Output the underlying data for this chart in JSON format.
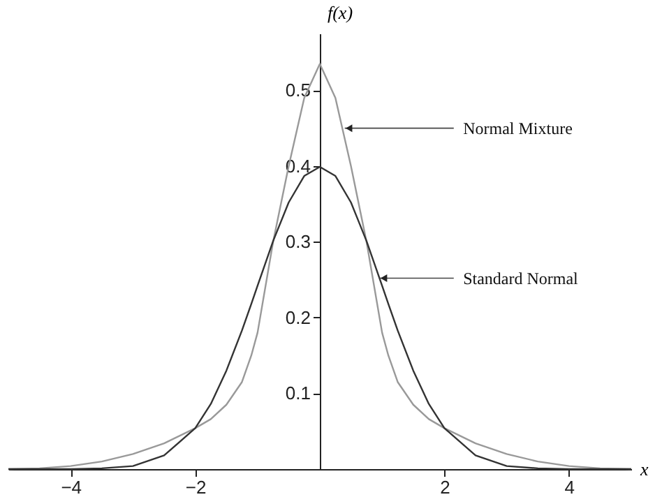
{
  "chart_data": {
    "type": "line",
    "xlabel": "x",
    "ylabel": "f(x)",
    "x": [
      -5,
      -4.5,
      -4,
      -3.5,
      -3,
      -2.5,
      -2,
      -1.75,
      -1.5,
      -1.25,
      -1.1,
      -1,
      -0.75,
      -0.5,
      -0.25,
      0,
      0.25,
      0.5,
      0.75,
      1,
      1.1,
      1.25,
      1.5,
      1.75,
      2,
      2.5,
      3,
      3.5,
      4,
      4.5,
      5
    ],
    "series": [
      {
        "color": "#999999",
        "values": [
          0,
          0.001,
          0.004,
          0.01,
          0.02,
          0.034,
          0.054,
          0.066,
          0.085,
          0.115,
          0.15,
          0.18,
          0.3,
          0.4,
          0.49,
          0.535,
          0.49,
          0.4,
          0.3,
          0.18,
          0.15,
          0.115,
          0.085,
          0.066,
          0.054,
          0.034,
          0.02,
          0.01,
          0.004,
          0.001,
          0
        ]
      },
      {
        "color": "#333333",
        "values": [
          0,
          0,
          0,
          0.001,
          0.004,
          0.018,
          0.054,
          0.086,
          0.13,
          0.183,
          0.218,
          0.242,
          0.301,
          0.352,
          0.387,
          0.399,
          0.387,
          0.352,
          0.301,
          0.242,
          0.218,
          0.183,
          0.13,
          0.086,
          0.054,
          0.018,
          0.004,
          0.001,
          0,
          0,
          0
        ]
      }
    ],
    "annotations": [
      {
        "text": "Normal Mixture",
        "x": 0.4,
        "y": 0.45
      },
      {
        "text": "Standard Normal",
        "x": 0.96,
        "y": 0.252
      }
    ],
    "xlim": [
      -5,
      5
    ],
    "xticks": [
      -4,
      -2,
      2,
      4
    ],
    "ylim": [
      0,
      0.575
    ],
    "yticks": [
      0.1,
      0.2,
      0.3,
      0.4,
      0.5
    ],
    "grid": false,
    "legend": false,
    "marker": "none",
    "line_style": "solid"
  }
}
